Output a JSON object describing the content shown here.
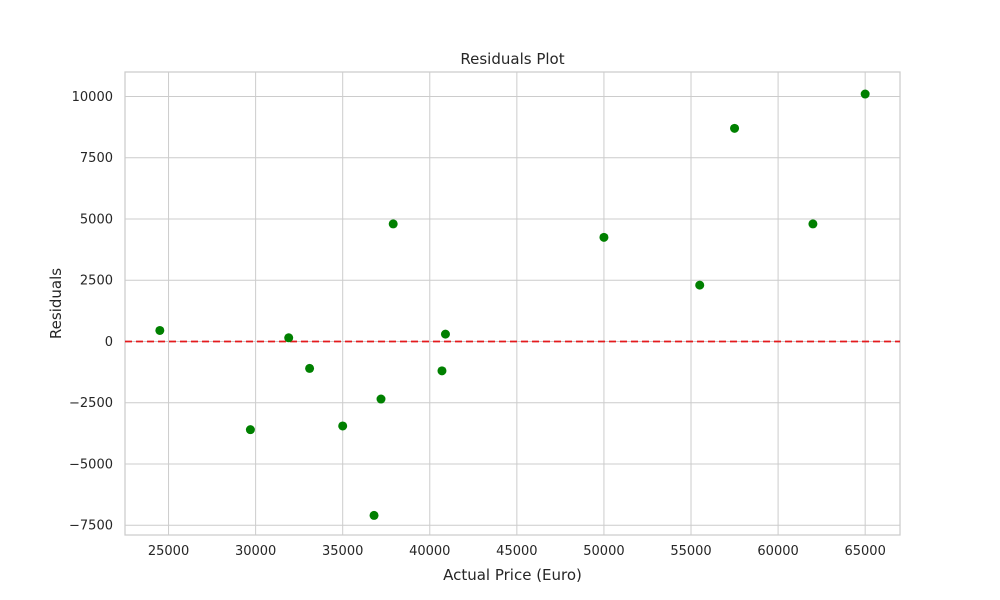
{
  "chart_data": {
    "type": "scatter",
    "title": "Residuals Plot",
    "xlabel": "Actual Price (Euro)",
    "ylabel": "Residuals",
    "xlim": [
      22500,
      67000
    ],
    "ylim": [
      -7900,
      11000
    ],
    "x_ticks": [
      25000,
      30000,
      35000,
      40000,
      45000,
      50000,
      55000,
      60000,
      65000
    ],
    "y_ticks": [
      -7500,
      -5000,
      -2500,
      0,
      2500,
      5000,
      7500,
      10000
    ],
    "x_tick_labels": [
      "25000",
      "30000",
      "35000",
      "40000",
      "45000",
      "50000",
      "55000",
      "60000",
      "65000"
    ],
    "y_tick_labels": [
      "−7500",
      "−5000",
      "−2500",
      "0",
      "2500",
      "5000",
      "7500",
      "10000"
    ],
    "grid": true,
    "reference_line": {
      "y": 0,
      "style": "dashed",
      "color": "#e41a1c"
    },
    "marker_color": "#008000",
    "points": [
      {
        "x": 24500,
        "y": 450
      },
      {
        "x": 29700,
        "y": -3600
      },
      {
        "x": 31900,
        "y": 150
      },
      {
        "x": 33100,
        "y": -1100
      },
      {
        "x": 35000,
        "y": -3450
      },
      {
        "x": 36800,
        "y": -7100
      },
      {
        "x": 37200,
        "y": -2350
      },
      {
        "x": 37900,
        "y": 4800
      },
      {
        "x": 40700,
        "y": -1200
      },
      {
        "x": 40900,
        "y": 300
      },
      {
        "x": 50000,
        "y": 4250
      },
      {
        "x": 55500,
        "y": 2300
      },
      {
        "x": 57500,
        "y": 8700
      },
      {
        "x": 62000,
        "y": 4800
      },
      {
        "x": 65000,
        "y": 10100
      }
    ]
  }
}
